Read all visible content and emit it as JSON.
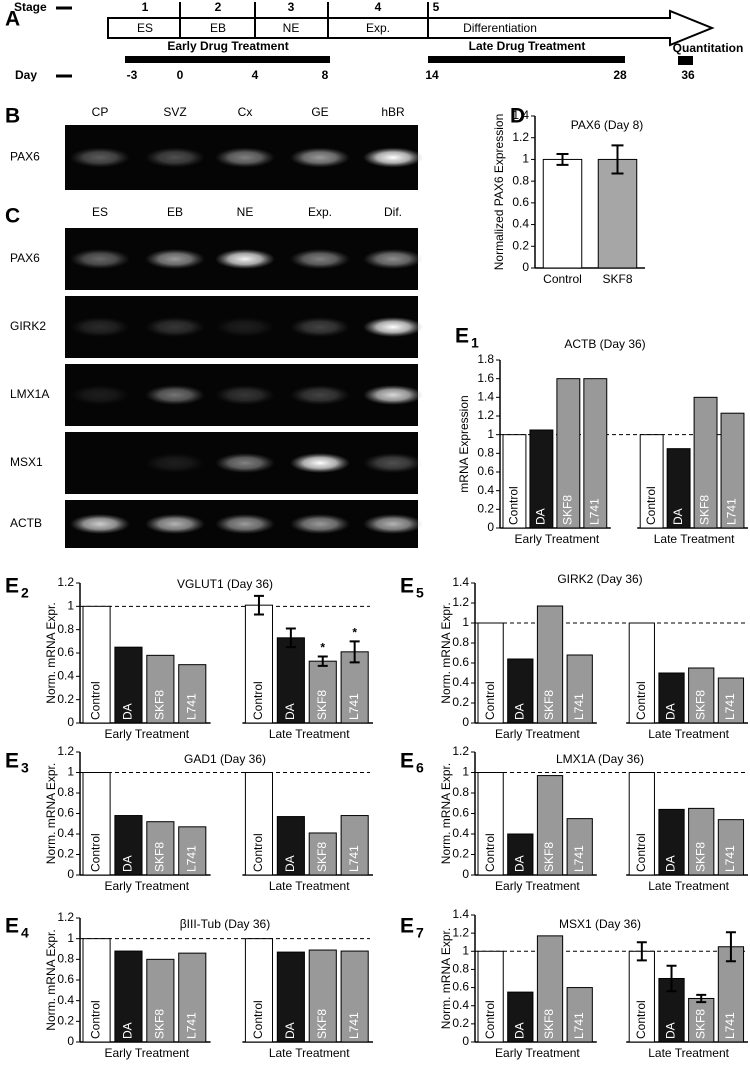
{
  "timeline": {
    "panel_label": "A",
    "stage_label": "Stage",
    "stages": [
      {
        "number": 1,
        "name": "ES"
      },
      {
        "number": 2,
        "name": "EB"
      },
      {
        "number": 3,
        "name": "NE"
      },
      {
        "number": 4,
        "name": "Exp."
      },
      {
        "number": 5,
        "name": "Differentiation"
      }
    ],
    "day_label": "Day",
    "days": [
      -3,
      0,
      4,
      8,
      14,
      28,
      36
    ],
    "treatments": [
      "Early Drug Treatment",
      "Late Drug Treatment"
    ],
    "quantitation": "Quantitation"
  },
  "gels": [
    {
      "panel_label": "B",
      "lanes": [
        "CP",
        "SVZ",
        "Cx",
        "GE",
        "hBR"
      ],
      "rows": [
        "PAX6"
      ]
    },
    {
      "panel_label": "C",
      "lanes": [
        "ES",
        "EB",
        "NE",
        "Exp.",
        "Dif."
      ],
      "rows": [
        "PAX6",
        "GIRK2",
        "LMX1A",
        "MSX1",
        "ACTB"
      ]
    }
  ],
  "chart_data": [
    {
      "type": "bar",
      "panel_label": "D",
      "title": "PAX6 (Day 8)",
      "y_label": "Normalized PAX6 Expression",
      "categories": [
        "Control",
        "SKF8"
      ],
      "values": [
        1,
        1
      ],
      "errors": [
        0.05,
        0.13
      ],
      "colors": [
        "#ffffff",
        "#a6a6a6"
      ],
      "ylim": [
        0,
        1.4
      ],
      "yticks": [
        0,
        0.2,
        0.4,
        0.6,
        0.8,
        1,
        1.2,
        1.4
      ]
    },
    {
      "type": "bar",
      "panel_label": "E",
      "panel_sub": "1",
      "title": "ACTB (Day 36)",
      "y_label": "mRNA Expression",
      "categories": [
        "Control",
        "DA",
        "SKF8",
        "L741"
      ],
      "colors": [
        "#ffffff",
        "#151515",
        "#999999",
        "#999999"
      ],
      "series": [
        {
          "name": "Early Treatment",
          "values": [
            1,
            1.05,
            1.6,
            1.6
          ]
        },
        {
          "name": "Late Treatment",
          "values": [
            1,
            0.85,
            1.4,
            1.23
          ]
        }
      ],
      "reference_line": 1,
      "ylim": [
        0,
        1.8
      ],
      "yticks": [
        0,
        0.2,
        0.4,
        0.6,
        0.8,
        1,
        1.2,
        1.4,
        1.6,
        1.8
      ]
    },
    {
      "type": "bar",
      "panel_label": "E",
      "panel_sub": "2",
      "title": "VGLUT1 (Day 36)",
      "y_label": "Norm. mRNA Expr.",
      "categories": [
        "Control",
        "DA",
        "SKF8",
        "L741"
      ],
      "colors": [
        "#ffffff",
        "#151515",
        "#999999",
        "#999999"
      ],
      "series": [
        {
          "name": "Early Treatment",
          "values": [
            1,
            0.65,
            0.58,
            0.5
          ]
        },
        {
          "name": "Late Treatment",
          "values": [
            1.01,
            0.73,
            0.53,
            0.61
          ],
          "errors": [
            0.08,
            0.08,
            0.04,
            0.09
          ],
          "significance": [
            null,
            null,
            "*",
            "*"
          ]
        }
      ],
      "reference_line": 1,
      "ylim": [
        0,
        1.2
      ],
      "yticks": [
        0,
        0.2,
        0.4,
        0.6,
        0.8,
        1,
        1.2
      ]
    },
    {
      "type": "bar",
      "panel_label": "E",
      "panel_sub": "3",
      "title": "GAD1 (Day 36)",
      "y_label": "Norm. mRNA Expr.",
      "categories": [
        "Control",
        "DA",
        "SKF8",
        "L741"
      ],
      "colors": [
        "#ffffff",
        "#151515",
        "#999999",
        "#999999"
      ],
      "series": [
        {
          "name": "Early Treatment",
          "values": [
            1,
            0.58,
            0.52,
            0.47
          ]
        },
        {
          "name": "Late Treatment",
          "values": [
            1,
            0.57,
            0.41,
            0.58
          ]
        }
      ],
      "reference_line": 1,
      "ylim": [
        0,
        1.2
      ],
      "yticks": [
        0,
        0.2,
        0.4,
        0.6,
        0.8,
        1,
        1.2
      ]
    },
    {
      "type": "bar",
      "panel_label": "E",
      "panel_sub": "4",
      "title": "βIII-Tub (Day 36)",
      "y_label": "Norm. mRNA Expr.",
      "categories": [
        "Control",
        "DA",
        "SKF8",
        "L741"
      ],
      "colors": [
        "#ffffff",
        "#151515",
        "#999999",
        "#999999"
      ],
      "series": [
        {
          "name": "Early Treatment",
          "values": [
            1,
            0.88,
            0.8,
            0.86
          ]
        },
        {
          "name": "Late Treatment",
          "values": [
            1,
            0.87,
            0.89,
            0.88
          ]
        }
      ],
      "reference_line": 1,
      "ylim": [
        0,
        1.2
      ],
      "yticks": [
        0,
        0.2,
        0.4,
        0.6,
        0.8,
        1,
        1.2
      ]
    },
    {
      "type": "bar",
      "panel_label": "E",
      "panel_sub": "5",
      "title": "GIRK2 (Day 36)",
      "y_label": "Norm. mRNA Expr.",
      "categories": [
        "Control",
        "DA",
        "SKF8",
        "L741"
      ],
      "colors": [
        "#ffffff",
        "#151515",
        "#999999",
        "#999999"
      ],
      "series": [
        {
          "name": "Early Treatment",
          "values": [
            1,
            0.64,
            1.17,
            0.68
          ]
        },
        {
          "name": "Late Treatment",
          "values": [
            1,
            0.5,
            0.55,
            0.45
          ]
        }
      ],
      "reference_line": 1,
      "ylim": [
        0,
        1.4
      ],
      "yticks": [
        0,
        0.2,
        0.4,
        0.6,
        0.8,
        1,
        1.2,
        1.4
      ]
    },
    {
      "type": "bar",
      "panel_label": "E",
      "panel_sub": "6",
      "title": "LMX1A (Day 36)",
      "y_label": "Norm. mRNA Expr.",
      "categories": [
        "Control",
        "DA",
        "SKF8",
        "L741"
      ],
      "colors": [
        "#ffffff",
        "#151515",
        "#999999",
        "#999999"
      ],
      "series": [
        {
          "name": "Early Treatment",
          "values": [
            1,
            0.4,
            0.97,
            0.55
          ]
        },
        {
          "name": "Late Treatment",
          "values": [
            1,
            0.64,
            0.65,
            0.54
          ]
        }
      ],
      "reference_line": 1,
      "ylim": [
        0,
        1.2
      ],
      "yticks": [
        0,
        0.2,
        0.4,
        0.6,
        0.8,
        1,
        1.2
      ]
    },
    {
      "type": "bar",
      "panel_label": "E",
      "panel_sub": "7",
      "title": "MSX1 (Day 36)",
      "y_label": "Norm. mRNA Expr.",
      "categories": [
        "Control",
        "DA",
        "SKF8",
        "L741"
      ],
      "colors": [
        "#ffffff",
        "#151515",
        "#999999",
        "#999999"
      ],
      "series": [
        {
          "name": "Early Treatment",
          "values": [
            1,
            0.55,
            1.17,
            0.6
          ]
        },
        {
          "name": "Late Treatment",
          "values": [
            1,
            0.7,
            0.48,
            1.05
          ],
          "errors": [
            0.1,
            0.14,
            0.04,
            0.16
          ]
        }
      ],
      "reference_line": 1,
      "ylim": [
        0,
        1.4
      ],
      "yticks": [
        0,
        0.2,
        0.4,
        0.6,
        0.8,
        1,
        1.2,
        1.4
      ]
    }
  ]
}
